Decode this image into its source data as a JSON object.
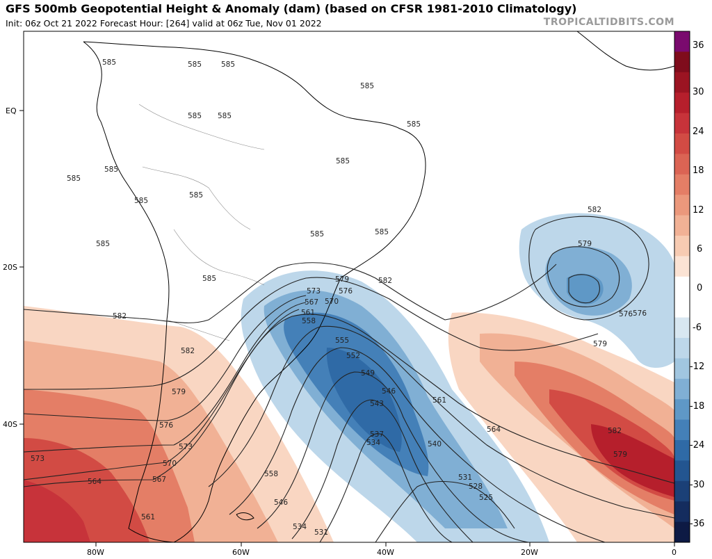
{
  "header": {
    "title": "GFS 500mb Geopotential Height & Anomaly (dam) (based on CFSR 1981-2010 Climatology)",
    "subtitle": "Init: 06z Oct 21 2022   Forecast Hour: [264]   valid at 06z Tue, Nov 01 2022",
    "brand": "TROPICALTIDBITS.COM"
  },
  "axes": {
    "lat_labels": [
      "EQ",
      "20S",
      "40S"
    ],
    "lon_labels": [
      "80W",
      "60W",
      "40W",
      "20W",
      "0"
    ]
  },
  "colorbar": {
    "tick_labels": [
      "36",
      "30",
      "24",
      "18",
      "12",
      "6",
      "0",
      "-6",
      "-12",
      "-18",
      "-24",
      "-30",
      "-36"
    ],
    "colors": [
      "#7a0a6e",
      "#7f0c1c",
      "#9b1422",
      "#b61f2c",
      "#c7333a",
      "#d24b44",
      "#db6454",
      "#e47e66",
      "#eb987c",
      "#f1b195",
      "#f7cbb2",
      "#fbe3d4",
      "#ffffff",
      "#ffffff",
      "#d8e7f1",
      "#bdd7ea",
      "#a1c6e0",
      "#80afd4",
      "#5f98c6",
      "#4480b8",
      "#2f6aa6",
      "#235590",
      "#1b4077",
      "#142c5e",
      "#0d1a44"
    ]
  },
  "contour_labels": {
    "585_north": "585",
    "582": "582",
    "579": "579",
    "576": "576",
    "573": "573",
    "570": "570",
    "567": "567",
    "564": "564",
    "561": "561",
    "558": "558",
    "555": "555",
    "552": "552",
    "549": "549",
    "546": "546",
    "543": "543",
    "540": "540",
    "537": "537",
    "534": "534",
    "531": "531",
    "528": "528",
    "525": "525"
  }
}
